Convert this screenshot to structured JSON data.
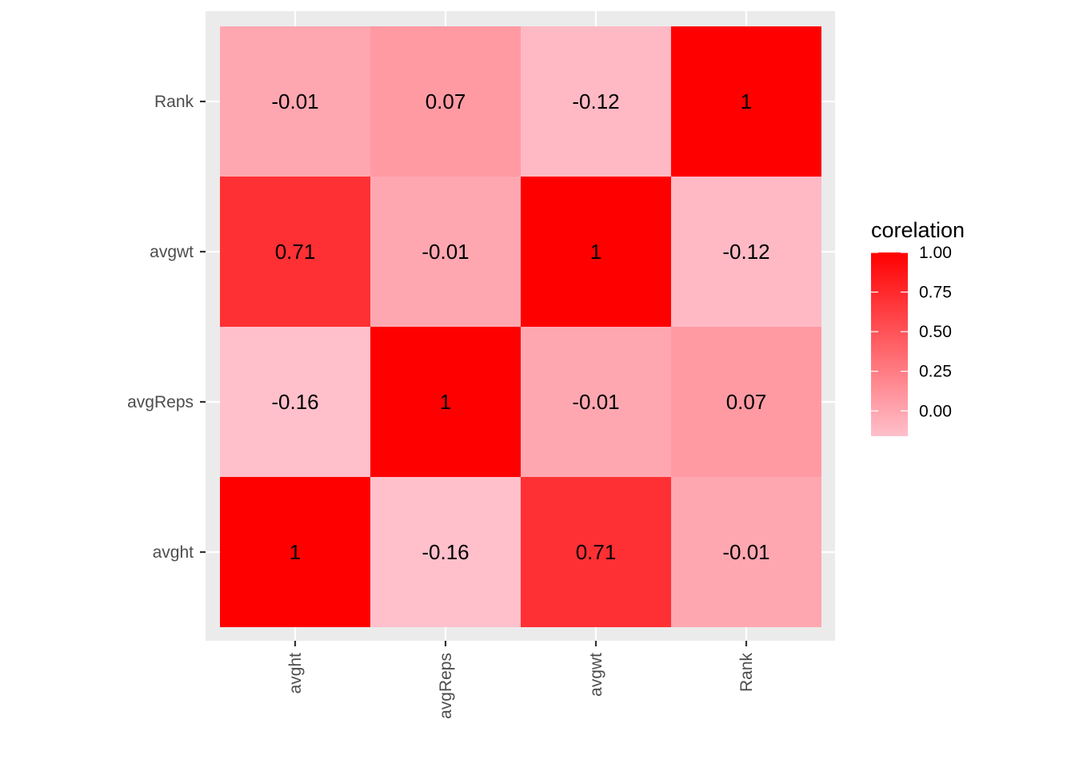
{
  "chart_data": {
    "type": "heatmap",
    "title": "",
    "xlabel": "",
    "ylabel": "",
    "x_categories": [
      "avght",
      "avgReps",
      "avgwt",
      "Rank"
    ],
    "y_categories": [
      "avght",
      "avgReps",
      "avgwt",
      "Rank"
    ],
    "values": [
      [
        1,
        -0.16,
        0.71,
        -0.01
      ],
      [
        -0.16,
        1,
        -0.01,
        0.07
      ],
      [
        0.71,
        -0.01,
        1,
        -0.12
      ],
      [
        -0.01,
        0.07,
        -0.12,
        1
      ]
    ],
    "labels": [
      [
        "1",
        "-0.16",
        "0.71",
        "-0.01"
      ],
      [
        "-0.16",
        "1",
        "-0.01",
        "0.07"
      ],
      [
        "0.71",
        "-0.01",
        "1",
        "-0.12"
      ],
      [
        "-0.01",
        "0.07",
        "-0.12",
        "1"
      ]
    ],
    "x_tick_rotation": 90,
    "panel_background": "#ebebeb",
    "grid_color": "#ffffff",
    "grid": true,
    "legend": {
      "title": "corelation",
      "position": "right",
      "limits": [
        -0.16,
        1
      ],
      "ticks": [
        0,
        0.25,
        0.5,
        0.75,
        1
      ],
      "tick_labels": [
        "0.00",
        "0.25",
        "0.50",
        "0.75",
        "1.00"
      ],
      "low_color": "#ffc0cb",
      "high_color": "#ff0000"
    }
  }
}
